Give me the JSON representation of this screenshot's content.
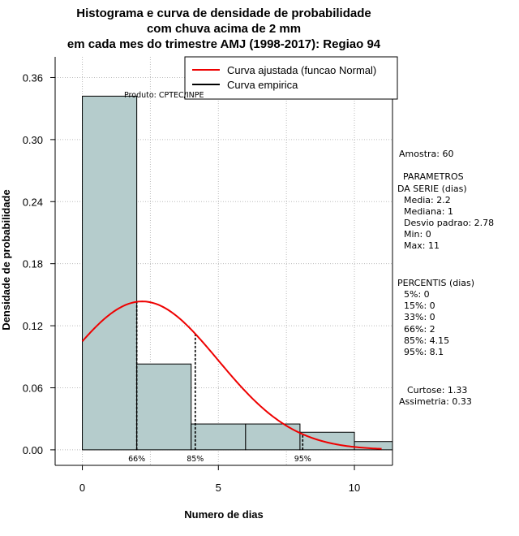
{
  "chart_data": {
    "type": "bar",
    "title_lines": [
      "Histograma e curva de densidade de probabilidade",
      "com chuva acima de 2 mm",
      "em cada mes do trimestre AMJ (1998-2017): Regiao 94"
    ],
    "xlabel": "Numero de dias",
    "ylabel": "Densidade de probabilidade",
    "xlim": [
      -1,
      11.4
    ],
    "ylim": [
      -0.015,
      0.38
    ],
    "x_ticks": [
      0,
      5,
      10
    ],
    "x_tick_labels": [
      "0",
      "5",
      "10"
    ],
    "y_ticks": [
      0.0,
      0.06,
      0.12,
      0.18,
      0.24,
      0.3,
      0.36
    ],
    "y_tick_labels": [
      "0.00",
      "0.06",
      "0.12",
      "0.18",
      "0.24",
      "0.30",
      "0.36"
    ],
    "grid_x": [
      0,
      2.5,
      5,
      7.5,
      10
    ],
    "grid_y": [
      0.0,
      0.06,
      0.12,
      0.18,
      0.24,
      0.3,
      0.36
    ],
    "bins": [
      {
        "x0": 0,
        "x1": 2,
        "density": 0.342
      },
      {
        "x0": 2,
        "x1": 4,
        "density": 0.083
      },
      {
        "x0": 4,
        "x1": 6,
        "density": 0.025
      },
      {
        "x0": 6,
        "x1": 8,
        "density": 0.025
      },
      {
        "x0": 8,
        "x1": 10,
        "density": 0.017
      },
      {
        "x0": 10,
        "x1": 12,
        "density": 0.008
      }
    ],
    "fit_curve": {
      "name": "Curva ajustada (funcao Normal)",
      "mean": 2.2,
      "sd": 2.78,
      "x_from": 0,
      "x_to": 11
    },
    "empirical_curve": {
      "name": "Curva empirica"
    },
    "percentile_markers": [
      {
        "label": "66%",
        "x": 2
      },
      {
        "label": "85%",
        "x": 4.15
      },
      {
        "label": "95%",
        "x": 8.1
      }
    ],
    "legend": [
      "Curva ajustada (funcao Normal)",
      "Curva empirica"
    ],
    "legend_placement": "top-right",
    "credit": "Produto: CPTEC/INPE",
    "colors": {
      "bar_fill": "#b5cccc",
      "fit_line": "#ee0000",
      "empirical_line": "#000000",
      "grid": "#bbbbbb"
    }
  },
  "stats": {
    "amostra": "Amostra: 60",
    "param_header_1": "PARAMETROS",
    "param_header_2": "DA SERIE (dias)",
    "params": [
      "Media: 2.2",
      "Mediana: 1",
      "Desvio padrao: 2.78",
      "Min: 0",
      "Max: 11"
    ],
    "perc_header": "PERCENTIS (dias)",
    "percentiles": [
      "5%: 0",
      "15%: 0",
      "33%: 0",
      "66%: 2",
      "85%: 4.15",
      "95%: 8.1"
    ],
    "curtose": "Curtose: 1.33",
    "assimetria": "Assimetria: 0.33"
  }
}
